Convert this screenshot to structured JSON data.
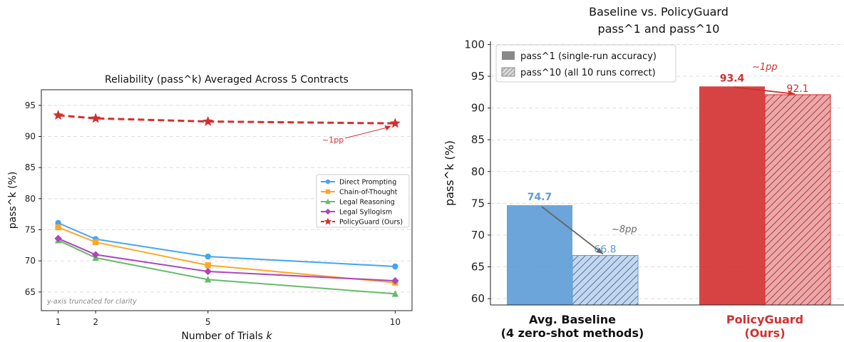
{
  "chart_data": [
    {
      "type": "line",
      "title": "Reliability (pass^k) Averaged Across 5 Contracts",
      "xlabel": "Number of Trials k",
      "ylabel": "pass^k (%)",
      "x": [
        1,
        2,
        5,
        10
      ],
      "xticks": [
        "1",
        "2",
        "5",
        "10"
      ],
      "yticks": [
        "65",
        "70",
        "75",
        "80",
        "85",
        "90",
        "95"
      ],
      "xlim": [
        0.55,
        10.45
      ],
      "ylim": [
        62,
        97.5
      ],
      "grid": "y",
      "legend": "center-right",
      "series": [
        {
          "name": "Direct Prompting",
          "values": [
            76.1,
            73.5,
            70.7,
            69.1
          ],
          "color": "#42a5f5",
          "marker": "circle",
          "dash": "solid"
        },
        {
          "name": "Chain-of-Thought",
          "values": [
            75.4,
            73.0,
            69.3,
            66.5
          ],
          "color": "#ffa726",
          "marker": "square",
          "dash": "solid"
        },
        {
          "name": "Legal Reasoning",
          "values": [
            73.3,
            70.5,
            67.0,
            64.7
          ],
          "color": "#66bb6a",
          "marker": "triangle",
          "dash": "solid"
        },
        {
          "name": "Legal Syllogism",
          "values": [
            73.6,
            71.0,
            68.3,
            66.8
          ],
          "color": "#ab47bc",
          "marker": "diamond",
          "dash": "solid"
        },
        {
          "name": "PolicyGuard (Ours)",
          "values": [
            93.4,
            92.9,
            92.4,
            92.1
          ],
          "color": "#d32f2f",
          "marker": "star",
          "dash": "dashed"
        }
      ],
      "annotations": [
        {
          "text": "~1pp",
          "x": 10,
          "y": 92.1,
          "color": "#d32f2f"
        },
        {
          "text": "y-axis truncated for clarity",
          "color": "#888888"
        }
      ]
    },
    {
      "type": "bar",
      "title": "Baseline vs. PolicyGuard",
      "subtitle": "pass^1 and pass^10",
      "ylabel": "pass^k (%)",
      "categories": [
        "Avg. Baseline\n(4 zero-shot methods)",
        "PolicyGuard\n(Ours)"
      ],
      "category_colors": [
        "#111111",
        "#d32f2f"
      ],
      "yticks": [
        "60",
        "65",
        "70",
        "75",
        "80",
        "85",
        "90",
        "95",
        "100"
      ],
      "ylim": [
        59,
        100.5
      ],
      "grid": "y",
      "legend": "top-left",
      "series": [
        {
          "name": "pass^1  (single-run accuracy)",
          "values": [
            74.7,
            93.4
          ],
          "style": "solid"
        },
        {
          "name": "pass^10  (all 10 runs correct)",
          "values": [
            66.8,
            92.1
          ],
          "style": "hatched"
        }
      ],
      "bar_colors": [
        "#5b9bd5",
        "#d32f2f"
      ],
      "value_labels": [
        {
          "pass1": "74.7",
          "pass10": "66.8"
        },
        {
          "pass1": "93.4",
          "pass10": "92.1"
        }
      ],
      "annotations": [
        {
          "text": "~8pp",
          "category": 0,
          "color": "#666666"
        },
        {
          "text": "~1pp",
          "category": 1,
          "color": "#d32f2f"
        }
      ]
    }
  ]
}
